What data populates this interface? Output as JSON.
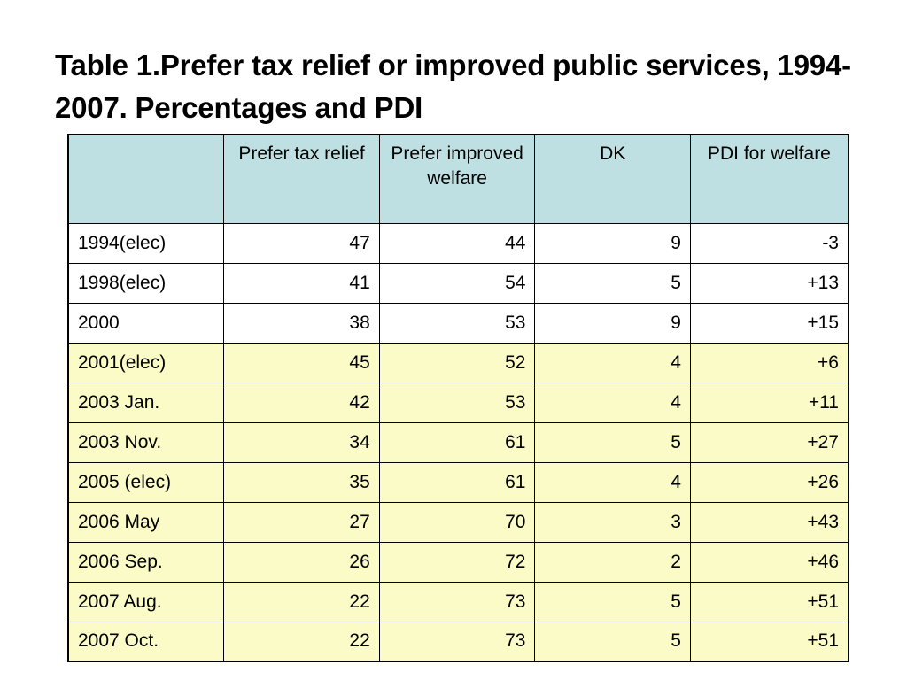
{
  "title": "Table 1.Prefer tax relief or improved public services, 1994-2007. Percentages and PDI",
  "colors": {
    "header_bg": "#bfe0e3",
    "highlight_row_bg": "#fbfbc8",
    "plain_row_bg": "#ffffff"
  },
  "table": {
    "headers": [
      "",
      "Prefer tax relief",
      "Prefer improved welfare",
      "DK",
      "PDI for welfare"
    ],
    "rows": [
      {
        "label": "1994(elec)",
        "tax": "47",
        "welfare": "44",
        "dk": "9",
        "pdi": "-3",
        "highlight": false
      },
      {
        "label": "1998(elec)",
        "tax": "41",
        "welfare": "54",
        "dk": "5",
        "pdi": "+13",
        "highlight": false
      },
      {
        "label": "2000",
        "tax": "38",
        "welfare": "53",
        "dk": "9",
        "pdi": "+15",
        "highlight": false
      },
      {
        "label": "2001(elec)",
        "tax": "45",
        "welfare": "52",
        "dk": "4",
        "pdi": "+6",
        "highlight": true
      },
      {
        "label": "2003 Jan.",
        "tax": "42",
        "welfare": "53",
        "dk": "4",
        "pdi": "+11",
        "highlight": true
      },
      {
        "label": "2003 Nov.",
        "tax": "34",
        "welfare": "61",
        "dk": "5",
        "pdi": "+27",
        "highlight": true
      },
      {
        "label": "2005 (elec)",
        "tax": "35",
        "welfare": "61",
        "dk": "4",
        "pdi": "+26",
        "highlight": true
      },
      {
        "label": "2006 May",
        "tax": "27",
        "welfare": "70",
        "dk": "3",
        "pdi": "+43",
        "highlight": true
      },
      {
        "label": "2006 Sep.",
        "tax": "26",
        "welfare": "72",
        "dk": "2",
        "pdi": "+46",
        "highlight": true
      },
      {
        "label": "2007 Aug.",
        "tax": "22",
        "welfare": "73",
        "dk": "5",
        "pdi": "+51",
        "highlight": true
      },
      {
        "label": "2007 Oct.",
        "tax": "22",
        "welfare": "73",
        "dk": "5",
        "pdi": "+51",
        "highlight": true
      }
    ]
  }
}
